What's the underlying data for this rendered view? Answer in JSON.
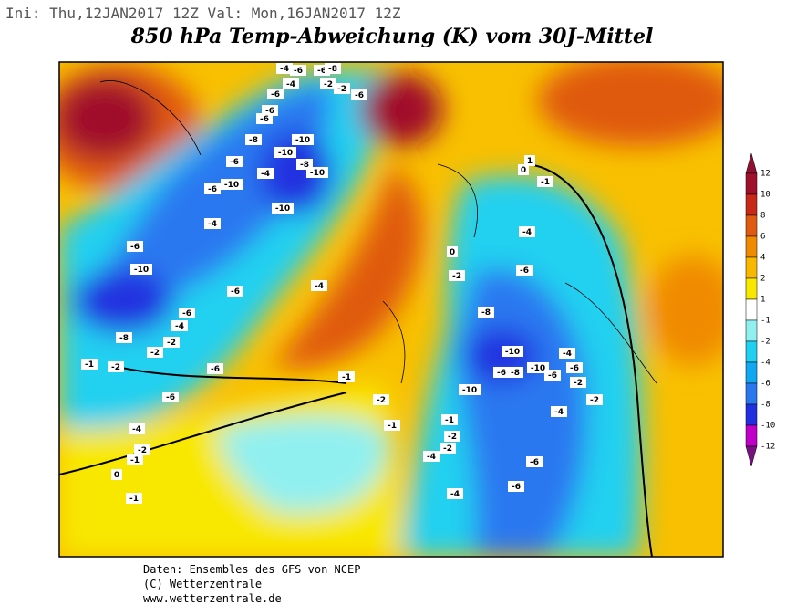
{
  "header": {
    "run_info": "Ini: Thu,12JAN2017 12Z  Val: Mon,16JAN2017 12Z",
    "title": "850 hPa Temp-Abweichung (K) vom 30J-Mittel"
  },
  "colorbar": {
    "ticks": [
      12,
      10,
      8,
      6,
      4,
      2,
      1,
      -1,
      -2,
      -4,
      -6,
      -8,
      -10,
      -12
    ],
    "colors": [
      "#a0102a",
      "#c82818",
      "#e05a10",
      "#f08a00",
      "#f8b800",
      "#f8e800",
      "#ffffff",
      "#90f0f0",
      "#20d0f0",
      "#10a8f0",
      "#2a78f0",
      "#2030e0",
      "#c000c8"
    ],
    "top_color": "#901030",
    "bottom_color": "#7a1080"
  },
  "map_labels": [
    "-4",
    "-6",
    "-6",
    "-8",
    "-4",
    "-2",
    "-2",
    "-6",
    "-6",
    "-6",
    "-6",
    "-8",
    "-10",
    "-10",
    "-10",
    "-4",
    "-6",
    "-10",
    "-6",
    "-10",
    "-4",
    "-6",
    "-10",
    "-6",
    "-4",
    "-6",
    "-4",
    "-8",
    "-2",
    "-2",
    "-1",
    "-2",
    "-6",
    "-6",
    "-4",
    "-2",
    "-1",
    "0",
    "-1",
    "-1",
    "-2",
    "-1",
    "-1",
    "-2",
    "-2",
    "-4",
    "-4",
    "-6",
    "-6",
    "-4",
    "-6",
    "-8",
    "-10",
    "-10",
    "-6",
    "-8",
    "-10",
    "-6",
    "-4",
    "-6",
    "-2",
    "-2",
    "-4",
    "-1",
    "0",
    "1",
    "0",
    "-2",
    "-8"
  ],
  "footer": {
    "source": "Daten: Ensembles des GFS von NCEP",
    "copyright": "(C) Wetterzentrale",
    "url": "www.wetterzentrale.de"
  }
}
